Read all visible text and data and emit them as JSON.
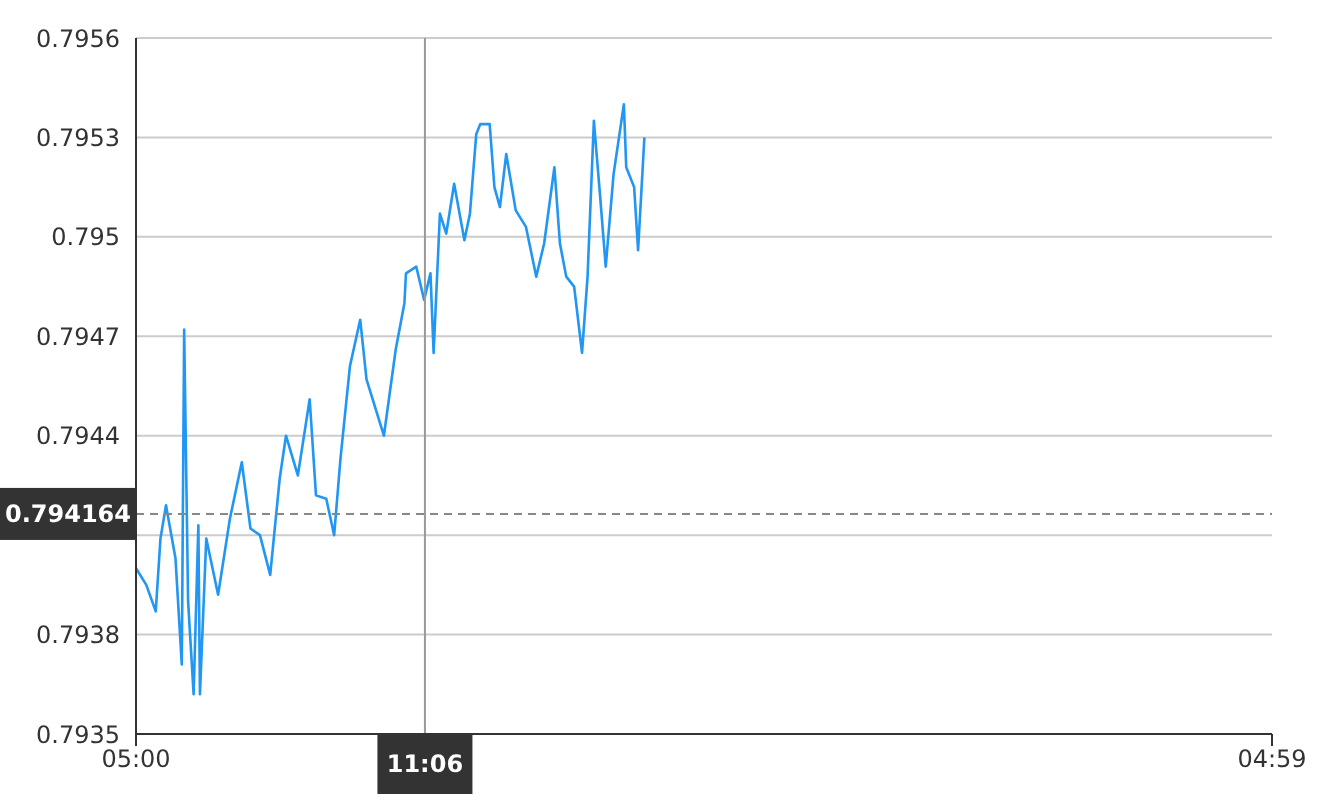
{
  "chart_data": {
    "type": "line",
    "x": [
      "2000-01-01T05:00",
      "2000-01-01T05:13",
      "2000-01-01T05:25",
      "2000-01-01T05:31",
      "2000-01-01T05:38",
      "2000-01-01T05:50",
      "2000-01-01T05:58",
      "2000-01-01T06:01",
      "2000-01-01T06:06",
      "2000-01-01T06:13",
      "2000-01-01T06:19",
      "2000-01-01T06:21",
      "2000-01-01T06:29",
      "2000-01-01T06:44",
      "2000-01-01T06:59",
      "2000-01-01T07:14",
      "2000-01-01T07:25",
      "2000-01-01T07:37",
      "2000-01-01T07:50",
      "2000-01-01T08:02",
      "2000-01-01T08:10",
      "2000-01-01T08:25",
      "2000-01-01T08:40",
      "2000-01-01T08:48",
      "2000-01-01T09:01",
      "2000-01-01T09:11",
      "2000-01-01T09:19",
      "2000-01-01T09:31",
      "2000-01-01T09:44",
      "2000-01-01T09:52",
      "2000-01-01T10:14",
      "2000-01-01T10:29",
      "2000-01-01T10:40",
      "2000-01-01T10:42",
      "2000-01-01T10:55",
      "2000-01-01T11:05",
      "2000-01-01T11:13",
      "2000-01-01T11:17",
      "2000-01-01T11:25",
      "2000-01-01T11:33",
      "2000-01-01T11:43",
      "2000-01-01T11:56",
      "2000-01-01T12:03",
      "2000-01-01T12:11",
      "2000-01-01T12:16",
      "2000-01-01T12:28",
      "2000-01-01T12:34",
      "2000-01-01T12:41",
      "2000-01-01T12:49",
      "2000-01-01T13:01",
      "2000-01-01T13:14",
      "2000-01-01T13:27",
      "2000-01-01T13:37",
      "2000-01-01T13:50",
      "2000-01-01T13:57",
      "2000-01-01T14:05",
      "2000-01-01T14:15",
      "2000-01-01T14:25",
      "2000-01-01T14:32",
      "2000-01-01T14:40",
      "2000-01-01T14:48",
      "2000-01-01T14:55",
      "2000-01-01T15:05",
      "2000-01-01T15:18",
      "2000-01-01T15:21",
      "2000-01-01T15:31",
      "2000-01-01T15:36",
      "2000-01-01T15:44"
    ],
    "series": [
      {
        "color": "#2196f3",
        "values": [
          0.794,
          0.79395,
          0.79387,
          0.79409,
          0.79419,
          0.79403,
          0.79371,
          0.79472,
          0.7939,
          0.79362,
          0.79413,
          0.79362,
          0.79409,
          0.79392,
          0.79415,
          0.79432,
          0.79412,
          0.7941,
          0.79398,
          0.79427,
          0.7944,
          0.79428,
          0.79451,
          0.79422,
          0.79421,
          0.7941,
          0.79433,
          0.79461,
          0.79475,
          0.79457,
          0.7944,
          0.79466,
          0.7948,
          0.79489,
          0.79491,
          0.79481,
          0.79489,
          0.79465,
          0.79507,
          0.79501,
          0.79516,
          0.79499,
          0.79507,
          0.79531,
          0.79534,
          0.79534,
          0.79515,
          0.79509,
          0.79525,
          0.79508,
          0.79503,
          0.79488,
          0.79498,
          0.79521,
          0.79498,
          0.79488,
          0.79485,
          0.79465,
          0.79488,
          0.79535,
          0.79512,
          0.79491,
          0.79519,
          0.7954,
          0.79521,
          0.79515,
          0.79496,
          0.7953
        ]
      }
    ],
    "xlim": [
      "2000-01-01T05:00",
      "2000-01-02T04:59"
    ],
    "xticks": [
      {
        "value": "2000-01-01T05:00",
        "label": "05:00"
      },
      {
        "value": "2000-01-02T04:59",
        "label": "04:59"
      }
    ],
    "ylim": [
      0.7935,
      0.7956
    ],
    "yticks": [
      0.7935,
      0.7938,
      {
        "value": 0.7941,
        "label": null
      },
      0.7944,
      0.7947,
      0.795,
      0.7953,
      0.7956
    ],
    "grid": "y",
    "marker": "none",
    "line_style": "solid",
    "ref_lines": [
      {
        "axis": "x",
        "value": "2000-01-01T11:06",
        "label": "11:06",
        "color": "#999999",
        "line_style": "solid"
      },
      {
        "axis": "y",
        "value": 0.794164,
        "label": "0.794164",
        "color": "#888888",
        "line_style": "dashed"
      }
    ]
  }
}
